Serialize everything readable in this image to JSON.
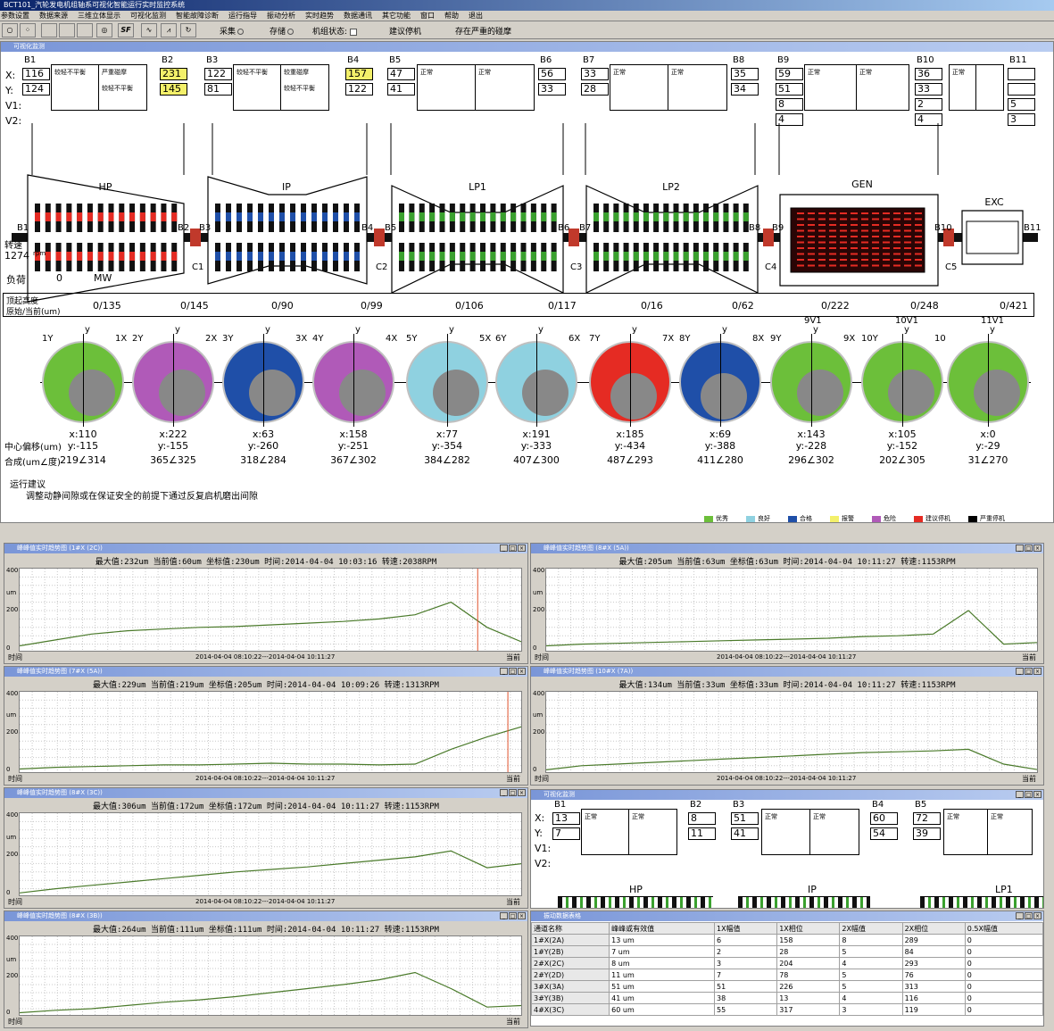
{
  "window": {
    "title": "BCT101_汽轮发电机组轴系可视化智能运行实时监控系统"
  },
  "menu": [
    "参数设置",
    "数据来源",
    "三维立体显示",
    "可视化监测",
    "智能故障诊断",
    "运行指导",
    "振动分析",
    "实时趋势",
    "数据通讯",
    "其它功能",
    "窗口",
    "帮助",
    "退出"
  ],
  "toolbar": {
    "collect": "采集",
    "store": "存储",
    "unit_state": "机组状态:",
    "suggest": "建议停机",
    "warning": "存在严重的碰摩",
    "sf": "SF"
  },
  "monitor": {
    "title": "可视化监测",
    "row_labels": [
      "X:",
      "Y:",
      "V1:",
      "V2:"
    ],
    "bearings": [
      {
        "id": "B1",
        "x": "116",
        "y": "124"
      },
      {
        "id": "B2",
        "x": "231",
        "y": "145"
      },
      {
        "id": "B3",
        "x": "122",
        "y": "81"
      },
      {
        "id": "B4",
        "x": "157",
        "y": "122"
      },
      {
        "id": "B5",
        "x": "47",
        "y": "41"
      },
      {
        "id": "B6",
        "x": "56",
        "y": "33"
      },
      {
        "id": "B7",
        "x": "33",
        "y": "28"
      },
      {
        "id": "B8",
        "x": "35",
        "y": "34"
      },
      {
        "id": "B9",
        "x": "59",
        "y": "51",
        "v1": "8",
        "v2": "4"
      },
      {
        "id": "B10",
        "x": "36",
        "y": "33",
        "v1": "2",
        "v2": "4"
      },
      {
        "id": "B11",
        "x": "",
        "y": "",
        "v1": "5",
        "v2": "3"
      }
    ],
    "status_boxes": [
      [
        "较轻不平衡",
        "严重碰摩",
        "较轻不平衡"
      ],
      [
        "较轻不平衡",
        "较重碰摩",
        "较轻不平衡"
      ],
      [
        "正常",
        "正常"
      ],
      [
        "正常",
        "正常"
      ],
      [
        "正常",
        "正常"
      ],
      [
        "正常",
        ""
      ]
    ],
    "sections": [
      "HP",
      "IP",
      "LP1",
      "LP2",
      "GEN",
      "EXC"
    ],
    "couplings": [
      "C1",
      "C2",
      "C3",
      "C4",
      "C5"
    ],
    "speed_label": "转速",
    "speed_value": "1274",
    "speed_unit": "rpm",
    "load_label": "负荷",
    "load_value": "0",
    "load_unit": "MW",
    "lift_label1": "顶起高度",
    "lift_label2": "原始/当前(um)",
    "lift_values": [
      "0/135",
      "0/145",
      "0/90",
      "0/99",
      "0/106",
      "0/117",
      "0/16",
      "0/62",
      "0/222",
      "0/248",
      "0/421"
    ],
    "circle_labels": [
      [
        "1Y",
        "1X"
      ],
      [
        "2Y",
        "2X"
      ],
      [
        "3Y",
        "3X"
      ],
      [
        "4Y",
        "4X"
      ],
      [
        "5Y",
        "5X"
      ],
      [
        "6Y",
        "6X"
      ],
      [
        "7Y",
        "7X"
      ],
      [
        "8Y",
        "8X"
      ],
      [
        "9Y",
        "9X"
      ],
      [
        "10Y",
        "10"
      ],
      [
        "",
        "11V1"
      ]
    ],
    "circle_tops": [
      "",
      "",
      "",
      "",
      "",
      "",
      "",
      "",
      "9V1",
      "10V1",
      "11V1"
    ],
    "axis_x": "x",
    "axis_y": "y",
    "circle_colors": [
      "#6cbf3a",
      "#b05ab8",
      "#1f4fa8",
      "#b05ab8",
      "#8fd1e0",
      "#8fd1e0",
      "#e52b23",
      "#1f4fa8",
      "#6cbf3a",
      "#6cbf3a",
      "#6cbf3a"
    ],
    "offsets": [
      [
        "x:110",
        "y:-115",
        "219∠314"
      ],
      [
        "x:222",
        "y:-155",
        "365∠325"
      ],
      [
        "x:63",
        "y:-260",
        "318∠284"
      ],
      [
        "x:158",
        "y:-251",
        "367∠302"
      ],
      [
        "x:77",
        "y:-354",
        "384∠282"
      ],
      [
        "x:191",
        "y:-333",
        "407∠300"
      ],
      [
        "x:185",
        "y:-434",
        "487∠293"
      ],
      [
        "x:69",
        "y:-388",
        "411∠280"
      ],
      [
        "x:143",
        "y:-228",
        "296∠302"
      ],
      [
        "x:105",
        "y:-152",
        "202∠305"
      ],
      [
        "x:0",
        "y:-29",
        "31∠270"
      ]
    ],
    "offset_label1": "中心偏移(um)",
    "offset_label2": "合成(um∠度)",
    "advice_title": "运行建议",
    "advice_text": "调整动静间隙或在保证安全的前提下通过反复启机磨出间隙",
    "legend": [
      {
        "c": "#6cbf3a",
        "t": "优秀"
      },
      {
        "c": "#8fd1e0",
        "t": "良好"
      },
      {
        "c": "#1f4fa8",
        "t": "合格"
      },
      {
        "c": "#f3f06a",
        "t": "报警"
      },
      {
        "c": "#b05ab8",
        "t": "危险"
      },
      {
        "c": "#e52b23",
        "t": "建议停机"
      },
      {
        "c": "#000000",
        "t": "严重停机"
      }
    ]
  },
  "trends": [
    {
      "title": "峰峰值实时趋势图 (1#X (2C))",
      "info": "最大值:232um  当前值:60um  坐标值:230um  时间:2014-04-04 10:03:16  转速:2038RPM",
      "time": "2014-04-04 08:10:22---2014-04-04 10:11:27",
      "marker": 0.91
    },
    {
      "title": "峰峰值实时趋势图 (8#X (5A))",
      "info": "最大值:205um  当前值:63um  坐标值:63um  时间:2014-04-04 10:11:27  转速:1153RPM",
      "time": "2014-04-04 08:10:22---2014-04-04 10:11:27",
      "marker": null
    },
    {
      "title": "峰峰值实时趋势图 (7#X (5A))",
      "info": "最大值:229um  当前值:219um  坐标值:205um  时间:2014-04-04 10:09:26  转速:1313RPM",
      "time": "2014-04-04 08:10:22---2014-04-04 10:11:27",
      "marker": 0.97
    },
    {
      "title": "峰峰值实时趋势图 (10#X (7A))",
      "info": "最大值:134um  当前值:33um  坐标值:33um  时间:2014-04-04 10:11:27  转速:1153RPM",
      "time": "2014-04-04 08:10:22---2014-04-04 10:11:27",
      "marker": null
    },
    {
      "title": "峰峰值实时趋势图 (8#X (3C))",
      "info": "最大值:306um  当前值:172um  坐标值:172um  时间:2014-04-04 10:11:27  转速:1153RPM",
      "time": "2014-04-04 08:10:22---2014-04-04 10:11:27",
      "marker": null
    },
    {
      "title": "峰峰值实时趋势图 (8#X (3B))",
      "info": "最大值:264um  当前值:111um  坐标值:111um  时间:2014-04-04 10:11:27  转速:1153RPM",
      "time": "",
      "marker": null
    }
  ],
  "trend_axis": {
    "y_ticks": [
      "400",
      "200",
      "0"
    ],
    "y_unit": "um",
    "start": "时间",
    "end": "当前"
  },
  "mini_monitor": {
    "title": "可视化监测",
    "bearings": [
      {
        "id": "B1",
        "x": "13",
        "y": "7"
      },
      {
        "id": "B2",
        "x": "8",
        "y": "11"
      },
      {
        "id": "B3",
        "x": "51",
        "y": "41"
      },
      {
        "id": "B4",
        "x": "60",
        "y": "54"
      },
      {
        "id": "B5",
        "x": "72",
        "y": "39"
      }
    ],
    "sections": [
      "HP",
      "IP",
      "LP1"
    ],
    "status": "正常"
  },
  "table": {
    "title": "振动数据表格",
    "headers": [
      "通道名称",
      "峰峰或有效值",
      "1X幅值",
      "1X相位",
      "2X幅值",
      "2X相位",
      "0.5X幅值"
    ],
    "rows": [
      [
        "1#X(2A)",
        "13 um",
        "6",
        "158",
        "8",
        "289",
        "0"
      ],
      [
        "1#Y(2B)",
        "7 um",
        "2",
        "28",
        "5",
        "84",
        "0"
      ],
      [
        "2#X(2C)",
        "8 um",
        "3",
        "204",
        "4",
        "293",
        "0"
      ],
      [
        "2#Y(2D)",
        "11 um",
        "7",
        "78",
        "5",
        "76",
        "0"
      ],
      [
        "3#X(3A)",
        "51 um",
        "51",
        "226",
        "5",
        "313",
        "0"
      ],
      [
        "3#Y(3B)",
        "41 um",
        "38",
        "13",
        "4",
        "116",
        "0"
      ],
      [
        "4#X(3C)",
        "60 um",
        "55",
        "317",
        "3",
        "119",
        "0"
      ]
    ]
  }
}
